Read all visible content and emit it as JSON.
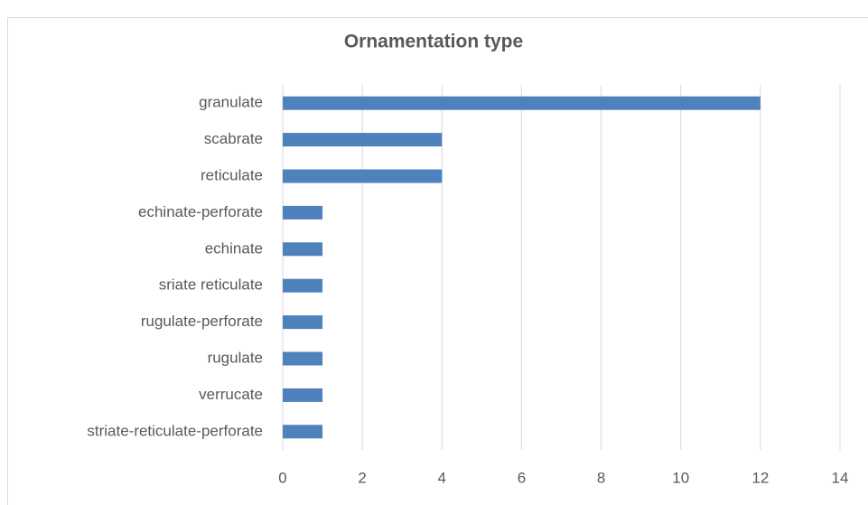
{
  "chart_data": {
    "type": "bar",
    "orientation": "horizontal",
    "title": "Ornamentation type",
    "categories": [
      "granulate",
      "scabrate",
      "reticulate",
      "echinate-perforate",
      "echinate",
      "sriate reticulate",
      "rugulate-perforate",
      "rugulate",
      "verrucate",
      "striate-reticulate-perforate"
    ],
    "values": [
      12,
      4,
      4,
      1,
      1,
      1,
      1,
      1,
      1,
      1
    ],
    "color": "#4f81bd",
    "xlim": [
      0,
      14
    ],
    "xticks": [
      0,
      2,
      4,
      6,
      8,
      10,
      12,
      14
    ],
    "grid": true
  }
}
